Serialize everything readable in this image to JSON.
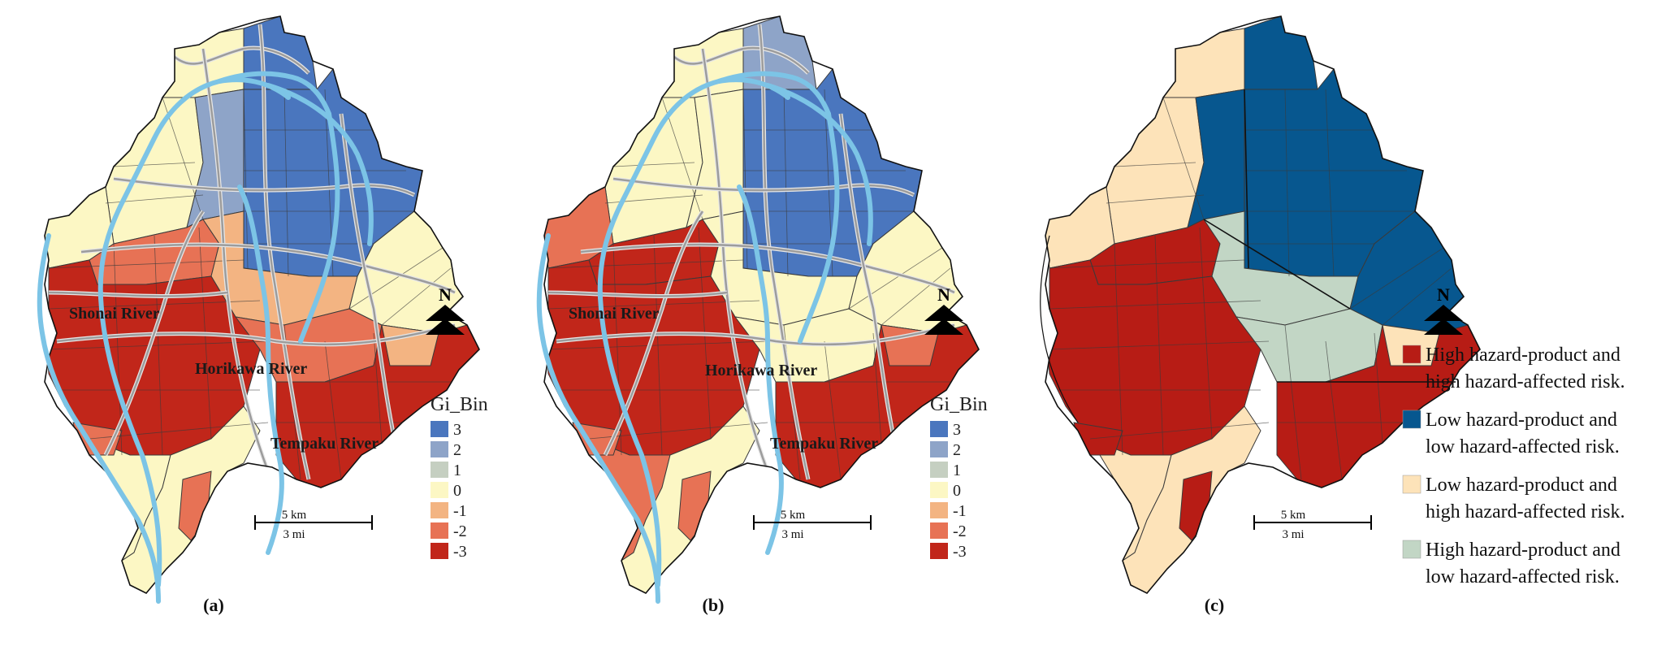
{
  "colors": {
    "gi_3": "#4a76be",
    "gi_2": "#8ea4c8",
    "gi_1": "#c5cfc1",
    "gi_0": "#fcf7c4",
    "gi_m1": "#f3b482",
    "gi_m2": "#e77255",
    "gi_m3": "#c1261a",
    "river": "#7cc4e6",
    "road": "#9c9c9c",
    "cat_high_high": "#b71c15",
    "cat_low_low": "#07578f",
    "cat_low_high": "#fde3b9",
    "cat_high_low": "#c2d6c5"
  },
  "rivers": {
    "shonai": "Shonai River",
    "horikawa": "Horikawa River",
    "tempaku": "Tempaku River"
  },
  "north_label": "N",
  "scale": {
    "km": "5 km",
    "mi": "3 mi"
  },
  "gi_legend": {
    "title": "Gi_Bin",
    "items": [
      {
        "label": "3",
        "color": "#4a76be"
      },
      {
        "label": "2",
        "color": "#8ea4c8"
      },
      {
        "label": "1",
        "color": "#c5cfc1"
      },
      {
        "label": "0",
        "color": "#fcf7c4"
      },
      {
        "label": "-1",
        "color": "#f3b482"
      },
      {
        "label": "-2",
        "color": "#e77255"
      },
      {
        "label": "-3",
        "color": "#c1261a"
      }
    ]
  },
  "cat_legend": [
    {
      "line1": "High hazard-product and",
      "line2": "high hazard-affected risk.",
      "color": "#b71c15"
    },
    {
      "line1": "Low hazard-product and",
      "line2": "low hazard-affected risk.",
      "color": "#07578f"
    },
    {
      "line1": "Low hazard-product and",
      "line2": "high hazard-affected risk.",
      "color": "#fde3b9"
    },
    {
      "line1": "High hazard-product and",
      "line2": "low hazard-affected risk.",
      "color": "#c2d6c5"
    }
  ],
  "panels": {
    "a": "(a)",
    "b": "(b)",
    "c": "(c)"
  }
}
